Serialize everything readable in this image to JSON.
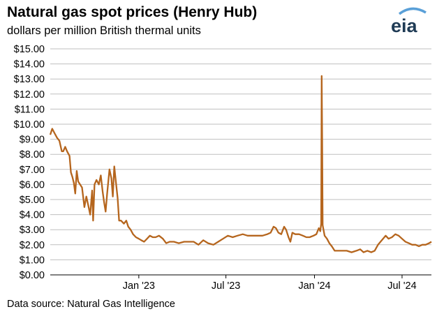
{
  "title": "Natural gas spot prices (Henry Hub)",
  "subtitle": "dollars per million British thermal units",
  "source": "Data source: Natural Gas Intelligence",
  "logo_text": "eia",
  "colors": {
    "line": "#b5651d",
    "grid": "#bfbfbf",
    "axis": "#000000",
    "logo": "#1f3b55",
    "logo_accent": "#5aa0d8"
  },
  "chart_data": {
    "type": "line",
    "title": "Natural gas spot prices (Henry Hub)",
    "ylabel": "dollars per million British thermal units",
    "ylim": [
      0,
      15
    ],
    "xlim": [
      "2022-07-01",
      "2024-08-31"
    ],
    "y_ticks": [
      0,
      1,
      2,
      3,
      4,
      5,
      6,
      7,
      8,
      9,
      10,
      11,
      12,
      13,
      14,
      15
    ],
    "y_tick_labels": [
      "$0.00",
      "$1.00",
      "$2.00",
      "$3.00",
      "$4.00",
      "$5.00",
      "$6.00",
      "$7.00",
      "$8.00",
      "$9.00",
      "$10.00",
      "$11.00",
      "$12.00",
      "$13.00",
      "$14.00",
      "$15.00"
    ],
    "x_ticks": [
      {
        "date": "2023-01-01",
        "label": "Jan '23"
      },
      {
        "date": "2023-07-01",
        "label": "Jul '23"
      },
      {
        "date": "2024-01-01",
        "label": "Jan '24"
      },
      {
        "date": "2024-07-01",
        "label": "Jul '24"
      }
    ],
    "grid": "horizontal",
    "series": [
      {
        "points": [
          [
            "2022-07-01",
            9.3
          ],
          [
            "2022-07-05",
            9.7
          ],
          [
            "2022-07-10",
            9.4
          ],
          [
            "2022-07-15",
            9.1
          ],
          [
            "2022-07-20",
            8.9
          ],
          [
            "2022-07-25",
            8.2
          ],
          [
            "2022-07-28",
            8.2
          ],
          [
            "2022-08-01",
            8.5
          ],
          [
            "2022-08-05",
            8.2
          ],
          [
            "2022-08-10",
            7.9
          ],
          [
            "2022-08-13",
            6.8
          ],
          [
            "2022-08-16",
            6.5
          ],
          [
            "2022-08-19",
            6.1
          ],
          [
            "2022-08-22",
            5.4
          ],
          [
            "2022-08-25",
            6.9
          ],
          [
            "2022-08-28",
            6.2
          ],
          [
            "2022-09-01",
            6.0
          ],
          [
            "2022-09-05",
            5.8
          ],
          [
            "2022-09-10",
            4.5
          ],
          [
            "2022-09-14",
            5.2
          ],
          [
            "2022-09-18",
            4.6
          ],
          [
            "2022-09-22",
            4.0
          ],
          [
            "2022-09-26",
            5.6
          ],
          [
            "2022-09-28",
            3.6
          ],
          [
            "2022-10-01",
            6.0
          ],
          [
            "2022-10-05",
            6.3
          ],
          [
            "2022-10-10",
            6.0
          ],
          [
            "2022-10-14",
            6.6
          ],
          [
            "2022-10-18",
            5.5
          ],
          [
            "2022-10-21",
            4.8
          ],
          [
            "2022-10-24",
            4.2
          ],
          [
            "2022-10-27",
            5.3
          ],
          [
            "2022-11-01",
            7.0
          ],
          [
            "2022-11-05",
            6.4
          ],
          [
            "2022-11-08",
            5.2
          ],
          [
            "2022-11-11",
            7.2
          ],
          [
            "2022-11-15",
            6.0
          ],
          [
            "2022-11-18",
            5.1
          ],
          [
            "2022-11-21",
            3.6
          ],
          [
            "2022-11-25",
            3.6
          ],
          [
            "2022-12-01",
            3.4
          ],
          [
            "2022-12-06",
            3.6
          ],
          [
            "2022-12-10",
            3.2
          ],
          [
            "2022-12-15",
            3.0
          ],
          [
            "2022-12-20",
            2.7
          ],
          [
            "2022-12-26",
            2.5
          ],
          [
            "2023-01-01",
            2.4
          ],
          [
            "2023-01-06",
            2.3
          ],
          [
            "2023-01-12",
            2.2
          ],
          [
            "2023-01-18",
            2.4
          ],
          [
            "2023-01-24",
            2.6
          ],
          [
            "2023-01-30",
            2.5
          ],
          [
            "2023-02-05",
            2.5
          ],
          [
            "2023-02-12",
            2.6
          ],
          [
            "2023-02-20",
            2.4
          ],
          [
            "2023-02-27",
            2.1
          ],
          [
            "2023-03-06",
            2.2
          ],
          [
            "2023-03-15",
            2.2
          ],
          [
            "2023-03-25",
            2.1
          ],
          [
            "2023-04-05",
            2.2
          ],
          [
            "2023-04-15",
            2.2
          ],
          [
            "2023-04-25",
            2.2
          ],
          [
            "2023-05-05",
            2.0
          ],
          [
            "2023-05-15",
            2.3
          ],
          [
            "2023-05-25",
            2.1
          ],
          [
            "2023-06-05",
            2.0
          ],
          [
            "2023-06-15",
            2.2
          ],
          [
            "2023-06-25",
            2.4
          ],
          [
            "2023-07-05",
            2.6
          ],
          [
            "2023-07-15",
            2.5
          ],
          [
            "2023-07-25",
            2.6
          ],
          [
            "2023-08-05",
            2.7
          ],
          [
            "2023-08-15",
            2.6
          ],
          [
            "2023-08-25",
            2.6
          ],
          [
            "2023-09-05",
            2.6
          ],
          [
            "2023-09-15",
            2.6
          ],
          [
            "2023-09-25",
            2.7
          ],
          [
            "2023-10-02",
            2.8
          ],
          [
            "2023-10-08",
            3.2
          ],
          [
            "2023-10-13",
            3.1
          ],
          [
            "2023-10-18",
            2.8
          ],
          [
            "2023-10-24",
            2.7
          ],
          [
            "2023-10-30",
            3.2
          ],
          [
            "2023-11-03",
            3.0
          ],
          [
            "2023-11-08",
            2.5
          ],
          [
            "2023-11-12",
            2.2
          ],
          [
            "2023-11-16",
            2.8
          ],
          [
            "2023-11-22",
            2.7
          ],
          [
            "2023-11-30",
            2.7
          ],
          [
            "2023-12-08",
            2.6
          ],
          [
            "2023-12-15",
            2.5
          ],
          [
            "2023-12-22",
            2.5
          ],
          [
            "2023-12-30",
            2.6
          ],
          [
            "2024-01-05",
            2.7
          ],
          [
            "2024-01-10",
            3.1
          ],
          [
            "2024-01-13",
            2.9
          ],
          [
            "2024-01-15",
            3.4
          ],
          [
            "2024-01-16",
            13.2
          ],
          [
            "2024-01-17",
            9.0
          ],
          [
            "2024-01-18",
            3.3
          ],
          [
            "2024-01-22",
            2.6
          ],
          [
            "2024-01-27",
            2.4
          ],
          [
            "2024-02-01",
            2.1
          ],
          [
            "2024-02-06",
            1.9
          ],
          [
            "2024-02-12",
            1.6
          ],
          [
            "2024-02-20",
            1.6
          ],
          [
            "2024-02-28",
            1.6
          ],
          [
            "2024-03-08",
            1.6
          ],
          [
            "2024-03-18",
            1.5
          ],
          [
            "2024-03-28",
            1.6
          ],
          [
            "2024-04-05",
            1.7
          ],
          [
            "2024-04-12",
            1.5
          ],
          [
            "2024-04-20",
            1.6
          ],
          [
            "2024-04-28",
            1.5
          ],
          [
            "2024-05-05",
            1.6
          ],
          [
            "2024-05-12",
            2.0
          ],
          [
            "2024-05-20",
            2.3
          ],
          [
            "2024-05-28",
            2.6
          ],
          [
            "2024-06-03",
            2.4
          ],
          [
            "2024-06-10",
            2.5
          ],
          [
            "2024-06-17",
            2.7
          ],
          [
            "2024-06-24",
            2.6
          ],
          [
            "2024-07-01",
            2.4
          ],
          [
            "2024-07-08",
            2.2
          ],
          [
            "2024-07-15",
            2.1
          ],
          [
            "2024-07-22",
            2.0
          ],
          [
            "2024-07-29",
            2.0
          ],
          [
            "2024-08-05",
            1.9
          ],
          [
            "2024-08-12",
            2.0
          ],
          [
            "2024-08-19",
            2.0
          ],
          [
            "2024-08-26",
            2.1
          ],
          [
            "2024-08-31",
            2.2
          ]
        ]
      }
    ]
  }
}
